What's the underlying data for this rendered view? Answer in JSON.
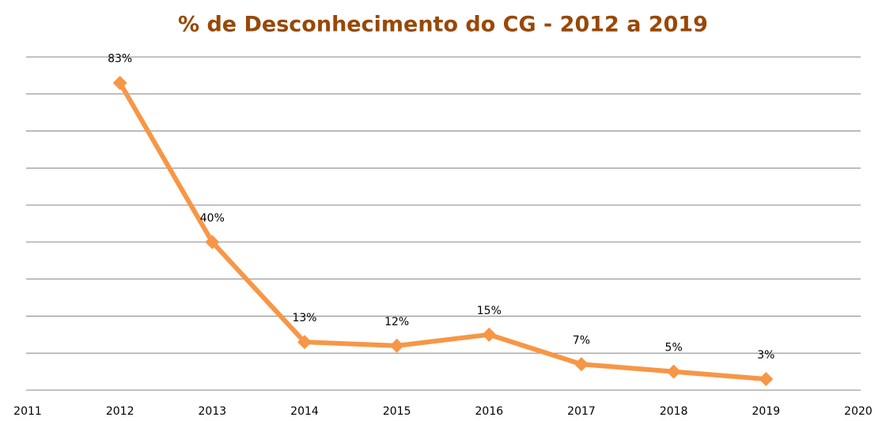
{
  "chart_data": {
    "type": "line",
    "title": "% de Desconhecimento  do CG - 2012 a 2019",
    "x": [
      2012,
      2013,
      2014,
      2015,
      2016,
      2017,
      2018,
      2019
    ],
    "series": [
      {
        "color": "#f79646",
        "values": [
          83,
          40,
          13,
          12,
          15,
          7,
          5,
          3
        ],
        "value_labels": [
          "83%",
          "40%",
          "13%",
          "12%",
          "15%",
          "7%",
          "5%",
          "3%"
        ]
      }
    ],
    "xlim": [
      2011,
      2020
    ],
    "xticks": [
      2011,
      2012,
      2013,
      2014,
      2015,
      2016,
      2017,
      2018,
      2019,
      2020
    ],
    "ylim": [
      0,
      90
    ],
    "yticks": [
      0,
      10,
      20,
      30,
      40,
      50,
      60,
      70,
      80,
      90
    ],
    "grid": true
  }
}
